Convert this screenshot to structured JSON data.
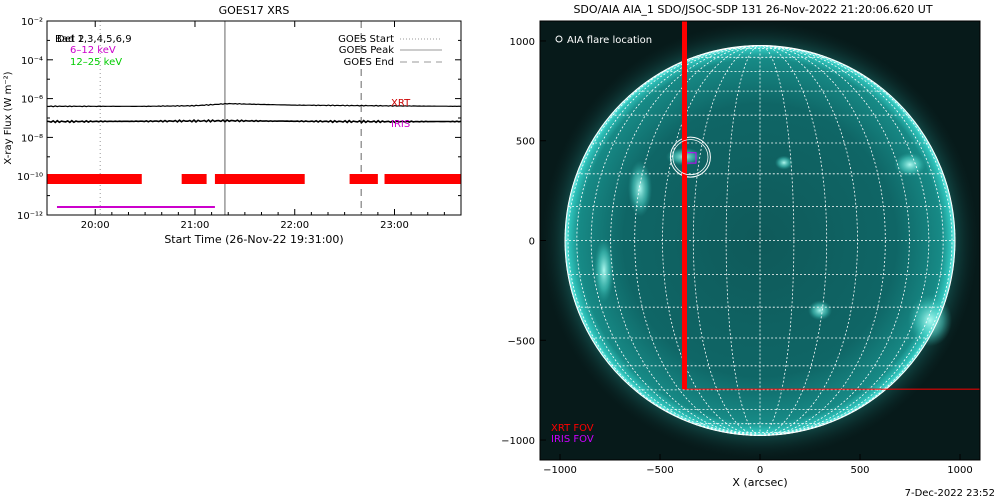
{
  "chart_data": [
    {
      "type": "line",
      "title": "GOES17 XRS",
      "xlabel": "Start Time (26-Nov-22 19:31:00)",
      "ylabel": "X-ray Flux (W m⁻²)",
      "yscale": "log",
      "ylim": [
        1e-12,
        0.01
      ],
      "xlim": [
        "19:31",
        "23:40"
      ],
      "x_ticks": [
        "20:00",
        "21:00",
        "22:00",
        "23:00"
      ],
      "y_ticks": [
        "10⁻¹²",
        "10⁻¹⁰",
        "10⁻⁸",
        "10⁻⁶",
        "10⁻⁴",
        "10⁻²"
      ],
      "legend_left": [
        {
          "label": "Bad 1,3,4,5,6,9",
          "color": "#000000"
        },
        {
          "label": "Det 2",
          "color": "#000000"
        },
        {
          "label": "6–12 keV",
          "color": "#cc00cc"
        },
        {
          "label": "12–25 keV",
          "color": "#00cc00"
        }
      ],
      "legend_right": [
        {
          "label": "GOES Start",
          "style": "dotted"
        },
        {
          "label": "GOES Peak",
          "style": "solid"
        },
        {
          "label": "GOES End",
          "style": "dashed"
        }
      ],
      "series": [
        {
          "name": "",
          "color": "#000000",
          "x": [
            "19:31",
            "20:30",
            "21:00",
            "21:20",
            "21:40",
            "22:00",
            "22:30",
            "23:00",
            "23:40"
          ],
          "values": [
            4e-07,
            4e-07,
            4.3e-07,
            5.5e-07,
            5e-07,
            4.6e-07,
            4.4e-07,
            4.2e-07,
            4e-07
          ]
        },
        {
          "name": "",
          "color": "#000000",
          "x": [
            "19:31",
            "20:30",
            "21:00",
            "21:20",
            "21:40",
            "22:00",
            "22:30",
            "23:00",
            "23:40"
          ],
          "values": [
            6.5e-08,
            6.8e-08,
            7e-08,
            7.2e-08,
            7e-08,
            6.8e-08,
            6.6e-08,
            6.5e-08,
            6.6e-08
          ]
        }
      ],
      "event_lines": [
        {
          "time": "20:03",
          "style": "dotted"
        },
        {
          "time": "21:18",
          "style": "solid"
        },
        {
          "time": "22:40",
          "style": "dashed"
        }
      ],
      "instrument_bars": [
        {
          "color": "#ff0000",
          "segments": [
            [
              "19:31",
              "20:28"
            ],
            [
              "20:52",
              "21:07"
            ],
            [
              "21:12",
              "22:06"
            ],
            [
              "22:33",
              "22:50"
            ],
            [
              "22:54",
              "23:40"
            ]
          ]
        },
        {
          "color": "#cc00cc",
          "segments": [
            [
              "19:37",
              "21:12"
            ]
          ]
        }
      ],
      "bar_labels": [
        {
          "text": "XRT",
          "color": "#cc0000"
        },
        {
          "text": "IRIS",
          "color": "#cc00cc"
        }
      ]
    },
    {
      "type": "image",
      "title": "SDO/AIA AIA_1 SDO/JSOC-SDP 131 26-Nov-2022 21:20:06.620 UT",
      "xlabel": "X (arcsec)",
      "ylabel": "",
      "xlim": [
        -1100,
        1100
      ],
      "ylim": [
        -1100,
        1100
      ],
      "x_ticks": [
        -1000,
        -500,
        0,
        500,
        1000
      ],
      "y_ticks": [
        -1000,
        -500,
        0,
        500,
        1000
      ],
      "solar_radius_arcsec": 975,
      "grid_spacing_deg": 10,
      "legend": "AIA flare location",
      "flare_location": [
        -348,
        418
      ],
      "fov_labels": [
        {
          "text": "XRT FOV",
          "color": "#ff0000"
        },
        {
          "text": "IRIS FOV",
          "color": "#cc00ff"
        }
      ],
      "xrt_fov": {
        "x": [
          -380,
          1100
        ],
        "y": [
          -745,
          1100
        ]
      },
      "iris_fov": {
        "x": [
          -375,
          -320
        ],
        "y": [
          388,
          440
        ]
      }
    }
  ],
  "footer": {
    "date": "7-Dec-2022 23:52"
  }
}
